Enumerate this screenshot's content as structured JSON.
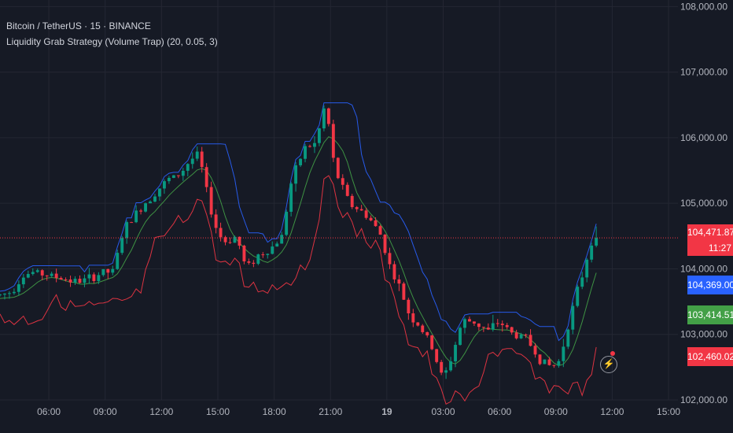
{
  "header": {
    "symbol_line": "Bitcoin / TetherUS · 15 · BINANCE",
    "indicator_line": "Liquidity Grab Strategy (Volume Trap) (20, 0.05, 3)"
  },
  "price_badges": [
    {
      "label": "104,471.87",
      "sub": "11:27",
      "color": "#f23645"
    },
    {
      "label": "104,369.00",
      "color": "#2962ff"
    },
    {
      "label": "103,414.51",
      "color": "#43a047"
    },
    {
      "label": "102,460.02",
      "color": "#f23645"
    }
  ],
  "icons": {
    "replay": "lightning-icon"
  },
  "chart_data": {
    "type": "candlestick",
    "instrument": "Bitcoin / TetherUS",
    "interval": "15",
    "exchange": "BINANCE",
    "y_axis": {
      "range": [
        102000,
        108100
      ],
      "ticks": [
        102000,
        103000,
        104000,
        105000,
        106000,
        107000,
        108000
      ],
      "tick_labels": [
        "102,000.00",
        "103,000.00",
        "104,000.00",
        "105,000.00",
        "106,000.00",
        "107,000.00",
        "108,000.00"
      ],
      "position": "right"
    },
    "x_axis": {
      "ticks": [
        {
          "label": "06:00",
          "hours": 6
        },
        {
          "label": "09:00",
          "hours": 9
        },
        {
          "label": "12:00",
          "hours": 12
        },
        {
          "label": "15:00",
          "hours": 15
        },
        {
          "label": "18:00",
          "hours": 18
        },
        {
          "label": "21:00",
          "hours": 21
        },
        {
          "label": "19",
          "hours": 24,
          "bold": true
        },
        {
          "label": "03:00",
          "hours": 27
        },
        {
          "label": "06:00",
          "hours": 30
        },
        {
          "label": "09:00",
          "hours": 33
        },
        {
          "label": "12:00",
          "hours": 36
        },
        {
          "label": "15:00",
          "hours": 39
        }
      ],
      "range_hours": [
        3.4,
        39.5
      ]
    },
    "last_price": 104471.87,
    "series": [
      {
        "name": "upper band",
        "value": 104369.0,
        "color": "#2962ff"
      },
      {
        "name": "middle band",
        "value": 103414.51,
        "color": "#43a047"
      },
      {
        "name": "lower band",
        "value": 102460.02,
        "color": "#f23645"
      }
    ],
    "colors": {
      "up": "#089981",
      "down": "#f23645",
      "background": "#161a25",
      "grid": "#242733",
      "axis_text": "#b2b5be"
    },
    "keypoints": [
      [
        3.4,
        103600
      ],
      [
        4.0,
        103650
      ],
      [
        4.6,
        103900
      ],
      [
        5.2,
        103950
      ],
      [
        6.0,
        103900
      ],
      [
        6.8,
        103850
      ],
      [
        7.5,
        103800
      ],
      [
        8.2,
        103850
      ],
      [
        8.9,
        103950
      ],
      [
        9.4,
        103950
      ],
      [
        10.0,
        104600
      ],
      [
        10.8,
        104900
      ],
      [
        11.6,
        105150
      ],
      [
        12.3,
        105350
      ],
      [
        13.0,
        105450
      ],
      [
        13.5,
        105650
      ],
      [
        14.0,
        105750
      ],
      [
        14.3,
        105300
      ],
      [
        14.8,
        104700
      ],
      [
        15.3,
        104400
      ],
      [
        16.0,
        104500
      ],
      [
        16.5,
        104000
      ],
      [
        17.1,
        104200
      ],
      [
        17.8,
        104300
      ],
      [
        18.4,
        104500
      ],
      [
        18.9,
        105300
      ],
      [
        19.6,
        105850
      ],
      [
        20.2,
        105900
      ],
      [
        20.8,
        106600
      ],
      [
        21.0,
        105800
      ],
      [
        21.4,
        105400
      ],
      [
        22.0,
        105000
      ],
      [
        22.5,
        104900
      ],
      [
        23.0,
        104800
      ],
      [
        23.7,
        104500
      ],
      [
        24.2,
        104000
      ],
      [
        24.7,
        103700
      ],
      [
        25.2,
        103300
      ],
      [
        25.8,
        103100
      ],
      [
        26.4,
        102800
      ],
      [
        27.0,
        102300
      ],
      [
        27.5,
        102700
      ],
      [
        28.0,
        103200
      ],
      [
        28.6,
        103200
      ],
      [
        29.4,
        103050
      ],
      [
        30.0,
        103200
      ],
      [
        30.7,
        103000
      ],
      [
        31.4,
        102950
      ],
      [
        32.2,
        102600
      ],
      [
        32.8,
        102500
      ],
      [
        33.2,
        102600
      ],
      [
        33.6,
        103100
      ],
      [
        34.0,
        103500
      ],
      [
        34.5,
        104000
      ],
      [
        34.9,
        104450
      ],
      [
        35.2,
        104470
      ]
    ]
  }
}
